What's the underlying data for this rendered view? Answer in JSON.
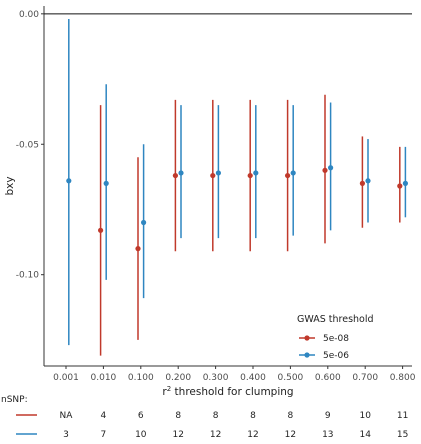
{
  "chart_data": {
    "type": "scatter",
    "subtype": "point-with-errorbars",
    "xlabel_prefix": "r",
    "xlabel_sup": "2",
    "xlabel_suffix": " threshold for clumping",
    "ylabel": "bxy",
    "categories": [
      "0.001",
      "0.010",
      "0.100",
      "0.200",
      "0.300",
      "0.400",
      "0.500",
      "0.600",
      "0.700",
      "0.800"
    ],
    "ylim": [
      -0.135,
      0.003
    ],
    "yticks": [
      0.0,
      -0.05,
      -0.1
    ],
    "ytick_labels": [
      "0.00",
      "-0.05",
      "-0.10"
    ],
    "reference_line": 0.0,
    "grid": false,
    "legend": {
      "title": "GWAS threshold",
      "placement": "bottom-right",
      "entries": [
        "5e-08",
        "5e-06"
      ]
    },
    "series": [
      {
        "name": "5e-08",
        "color": "#c0392b",
        "values": [
          null,
          -0.083,
          -0.09,
          -0.062,
          -0.062,
          -0.062,
          -0.062,
          -0.06,
          -0.065,
          -0.066
        ],
        "lower": [
          null,
          -0.131,
          -0.125,
          -0.091,
          -0.091,
          -0.091,
          -0.091,
          -0.088,
          -0.082,
          -0.08
        ],
        "upper": [
          null,
          -0.035,
          -0.055,
          -0.033,
          -0.033,
          -0.033,
          -0.033,
          -0.031,
          -0.047,
          -0.051
        ]
      },
      {
        "name": "5e-06",
        "color": "#2e86c1",
        "values": [
          -0.064,
          -0.065,
          -0.08,
          -0.061,
          -0.061,
          -0.061,
          -0.061,
          -0.059,
          -0.064,
          -0.065
        ],
        "lower": [
          -0.127,
          -0.102,
          -0.109,
          -0.086,
          -0.086,
          -0.086,
          -0.085,
          -0.083,
          -0.08,
          -0.078
        ],
        "upper": [
          -0.002,
          -0.027,
          -0.05,
          -0.035,
          -0.035,
          -0.035,
          -0.035,
          -0.034,
          -0.048,
          -0.051
        ]
      }
    ],
    "nsnp": {
      "label": "nSNP:",
      "rows": [
        {
          "color": "#c0392b",
          "values": [
            "NA",
            "4",
            "6",
            "8",
            "8",
            "8",
            "8",
            "9",
            "10",
            "11"
          ]
        },
        {
          "color": "#2e86c1",
          "values": [
            "3",
            "7",
            "10",
            "12",
            "12",
            "12",
            "12",
            "13",
            "14",
            "15"
          ]
        }
      ]
    }
  }
}
